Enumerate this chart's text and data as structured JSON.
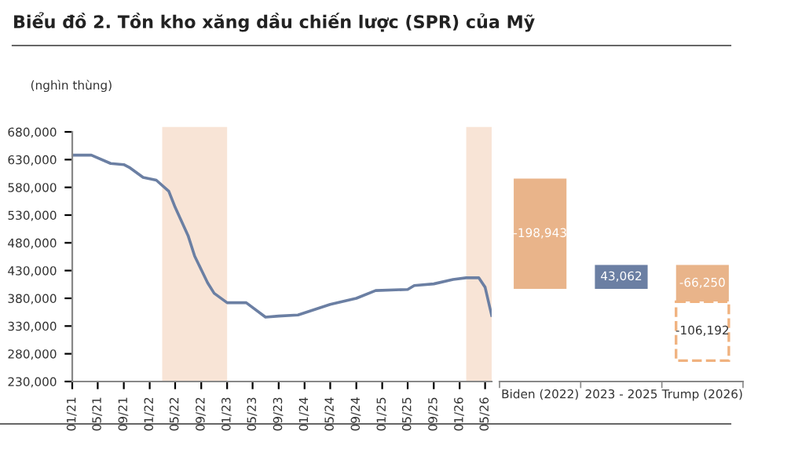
{
  "chart_data": [
    {
      "type": "line",
      "title": "Biểu đồ 2. Tồn kho xăng dầu chiến lược (SPR) của Mỹ",
      "ylabel": "(nghìn thùng)",
      "x": [
        "2021-01",
        "2021-04",
        "2021-07",
        "2021-09",
        "2021-10",
        "2021-12",
        "2022-02",
        "2022-04",
        "2022-05",
        "2022-07",
        "2022-08",
        "2022-10",
        "2022-11",
        "2023-01",
        "2023-04",
        "2023-07",
        "2023-09",
        "2023-12",
        "2024-05",
        "2024-09",
        "2024-12",
        "2025-05",
        "2025-06",
        "2025-09",
        "2025-12",
        "2026-02",
        "2026-04",
        "2026-05",
        "2026-06"
      ],
      "values": [
        638000,
        638000,
        623000,
        621000,
        615000,
        598000,
        593000,
        573000,
        544000,
        493000,
        456000,
        408000,
        389000,
        372000,
        372000,
        346000,
        348000,
        350000,
        369000,
        380000,
        394000,
        396000,
        403000,
        406000,
        414000,
        417000,
        417000,
        400000,
        349000
      ],
      "color": "#6b7fa3",
      "line_style": "solid",
      "marker": "none",
      "xlim": [
        "2021-01",
        "2026-06"
      ],
      "xticks": [
        {
          "value": "2021-01",
          "label": "01/21"
        },
        {
          "value": "2021-05",
          "label": "05/21"
        },
        {
          "value": "2021-09",
          "label": "09/21"
        },
        {
          "value": "2022-01",
          "label": "01/22"
        },
        {
          "value": "2022-05",
          "label": "05/22"
        },
        {
          "value": "2022-09",
          "label": "09/22"
        },
        {
          "value": "2023-01",
          "label": "01/23"
        },
        {
          "value": "2023-05",
          "label": "05/23"
        },
        {
          "value": "2023-09",
          "label": "09/23"
        },
        {
          "value": "2024-01",
          "label": "01/24"
        },
        {
          "value": "2024-05",
          "label": "05/24"
        },
        {
          "value": "2024-09",
          "label": "09/24"
        },
        {
          "value": "2025-01",
          "label": "01/25"
        },
        {
          "value": "2025-05",
          "label": "05/25"
        },
        {
          "value": "2025-09",
          "label": "09/25"
        },
        {
          "value": "2026-01",
          "label": "01/26"
        },
        {
          "value": "2026-05",
          "label": "05/26"
        }
      ],
      "ylim": [
        230000,
        680000
      ],
      "yticks": [
        {
          "value": 230000,
          "label": "230,000"
        },
        {
          "value": 280000,
          "label": "280,000"
        },
        {
          "value": 330000,
          "label": "330,000"
        },
        {
          "value": 380000,
          "label": "380,000"
        },
        {
          "value": 430000,
          "label": "430,000"
        },
        {
          "value": 480000,
          "label": "480,000"
        },
        {
          "value": 530000,
          "label": "530,000"
        },
        {
          "value": 580000,
          "label": "580,000"
        },
        {
          "value": 630000,
          "label": "630,000"
        },
        {
          "value": 680000,
          "label": "680,000"
        }
      ],
      "bands": [
        {
          "axis": "x",
          "from": "2022-03",
          "to": "2023-01",
          "color": "#f8e4d6"
        },
        {
          "axis": "x",
          "from": "2026-02",
          "to": "2026-06",
          "color": "#f8e4d6"
        }
      ],
      "grid": false
    },
    {
      "type": "bar",
      "categories": [
        "Biden (2022)",
        "2023 - 2025",
        "Trump (2026)"
      ],
      "series": [
        {
          "values": [
            -198943,
            43062,
            -66250
          ],
          "base": [
            595943,
            397000,
            440062
          ],
          "colors": [
            "#e9b48a",
            "#6b7fa3",
            "#e9b48a"
          ],
          "value_labels": [
            "-198,943",
            "43,062",
            "-66,250"
          ]
        },
        {
          "values": [
            null,
            null,
            -106192
          ],
          "base": [
            null,
            null,
            373812
          ],
          "color": "#f0b27f",
          "line_style": "dashed",
          "value_labels": [
            null,
            null,
            "-106,192"
          ]
        }
      ],
      "ylim": [
        230000,
        680000
      ],
      "tick_labels": "x",
      "grid": false
    }
  ]
}
